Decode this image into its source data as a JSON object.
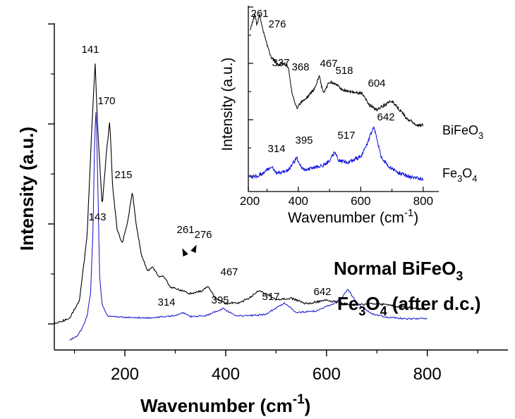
{
  "chart_data": [
    {
      "type": "line",
      "title": "",
      "xlabel": "Wavenumber (cm",
      "xlabel_sup": "-1",
      "xlabel_close": ")",
      "ylabel": "Intensity (a.u.)",
      "xlim": [
        60,
        960
      ],
      "xticks": [
        "200",
        "400",
        "600",
        "800"
      ],
      "xtick_values": [
        200,
        400,
        600,
        800
      ],
      "y_tick_labels_shown": false,
      "grid": false,
      "series": [
        {
          "name": "Normal BiFeO",
          "name_sub": "3",
          "color": "#000000",
          "x": [
            60,
            90,
            110,
            125,
            135,
            141,
            146,
            155,
            163,
            170,
            176,
            185,
            195,
            205,
            215,
            222,
            232,
            245,
            255,
            261,
            268,
            276,
            290,
            310,
            330,
            350,
            365,
            380,
            400,
            430,
            450,
            467,
            485,
            500,
            530,
            560,
            600,
            650,
            700,
            750,
            800
          ],
          "values": [
            0.0,
            0.08,
            0.35,
            1.3,
            3.0,
            3.86,
            2.9,
            1.75,
            2.5,
            3.0,
            2.0,
            1.38,
            1.2,
            1.5,
            1.95,
            1.5,
            1.05,
            0.78,
            0.84,
            0.78,
            0.68,
            0.72,
            0.55,
            0.5,
            0.45,
            0.48,
            0.55,
            0.38,
            0.3,
            0.32,
            0.4,
            0.5,
            0.42,
            0.36,
            0.38,
            0.3,
            0.35,
            0.28,
            0.3,
            0.25,
            0.22
          ],
          "peak_labels": [
            "141",
            "170",
            "215",
            "261",
            "276",
            "467"
          ]
        },
        {
          "name": "Fe",
          "name_sub": "3",
          "name_tail": "O",
          "name_sub2": "4",
          "name_end": " (after d.c.)",
          "color": "#1010cc",
          "x": [
            90,
            105,
            115,
            125,
            132,
            137,
            140,
            143,
            146,
            150,
            155,
            165,
            180,
            200,
            250,
            300,
            314,
            330,
            360,
            395,
            420,
            450,
            480,
            517,
            540,
            580,
            610,
            630,
            642,
            660,
            690,
            720,
            760,
            800
          ],
          "values": [
            -0.25,
            -0.2,
            -0.1,
            0.05,
            0.35,
            1.2,
            2.3,
            2.7,
            1.8,
            0.55,
            0.2,
            0.06,
            0.05,
            0.04,
            0.03,
            0.06,
            0.1,
            0.05,
            0.06,
            0.15,
            0.06,
            0.06,
            0.08,
            0.22,
            0.1,
            0.12,
            0.2,
            0.28,
            0.4,
            0.22,
            0.08,
            0.04,
            0.02,
            0.02
          ],
          "peak_labels": [
            "143",
            "314",
            "395",
            "517",
            "642"
          ]
        }
      ]
    },
    {
      "type": "line",
      "title": "",
      "xlabel": "Wavenumber (cm",
      "xlabel_sup": "-1",
      "xlabel_close": ")",
      "ylabel": "Intensity (a.u.)",
      "xlim": [
        240,
        850
      ],
      "xticks": [
        "200",
        "400",
        "600",
        "800"
      ],
      "xtick_values": [
        200,
        400,
        600,
        800
      ],
      "grid": false,
      "series": [
        {
          "name": "BiFeO",
          "name_sub": "3",
          "color": "#000000",
          "x": [
            245,
            255,
            261,
            268,
            276,
            290,
            310,
            337,
            355,
            368,
            380,
            395,
            410,
            430,
            450,
            467,
            480,
            500,
            518,
            540,
            560,
            580,
            604,
            625,
            650,
            680,
            700,
            720,
            750,
            780,
            800
          ],
          "values": [
            4.3,
            4.55,
            4.7,
            4.4,
            4.7,
            4.2,
            3.6,
            3.35,
            3.4,
            3.3,
            2.6,
            2.2,
            2.35,
            2.5,
            2.7,
            3.05,
            2.6,
            2.9,
            2.85,
            2.7,
            2.65,
            2.6,
            2.6,
            2.3,
            2.15,
            2.3,
            2.4,
            2.2,
            1.9,
            1.75,
            1.75
          ],
          "peak_labels": [
            "261",
            "276",
            "337",
            "368",
            "467",
            "518",
            "604"
          ]
        },
        {
          "name": "Fe",
          "name_sub": "3",
          "name_tail": "O",
          "name_sub2": "4",
          "color": "#1010dd",
          "x": [
            245,
            270,
            290,
            300,
            314,
            330,
            350,
            370,
            385,
            395,
            405,
            420,
            450,
            480,
            500,
            517,
            530,
            560,
            600,
            620,
            632,
            642,
            650,
            665,
            690,
            720,
            760,
            800
          ],
          "values": [
            0.2,
            0.25,
            0.35,
            0.45,
            0.55,
            0.35,
            0.38,
            0.45,
            0.7,
            0.85,
            0.6,
            0.45,
            0.5,
            0.6,
            0.75,
            1.05,
            0.75,
            0.7,
            0.9,
            1.3,
            1.65,
            1.9,
            1.55,
            0.9,
            0.55,
            0.35,
            0.2,
            0.12
          ],
          "peak_labels": [
            "314",
            "395",
            "517",
            "642"
          ]
        }
      ]
    }
  ]
}
